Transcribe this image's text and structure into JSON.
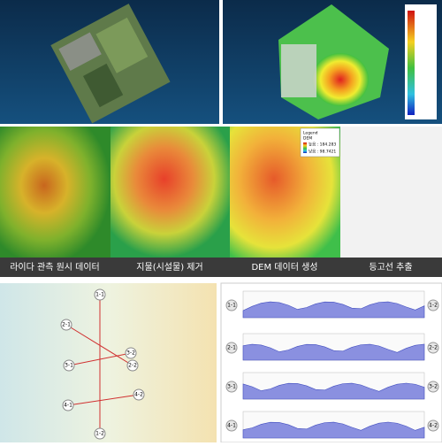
{
  "captions": [
    "라이다 관측 원시 데이터",
    "지물(시설물) 제거",
    "DEM 데이터 생성",
    "등고선 추출"
  ],
  "dem_legend": {
    "title": "Legend",
    "layer": "DEM",
    "high": "높음 : 184.283",
    "low": "낮음 : 98.7421"
  },
  "map_points": [
    "1-1",
    "1-2",
    "2-1",
    "2-2",
    "3-1",
    "3-2",
    "4-1",
    "4-2"
  ],
  "profiles": [
    {
      "start": "1-1",
      "end": "1-2"
    },
    {
      "start": "2-1",
      "end": "2-2"
    },
    {
      "start": "3-1",
      "end": "3-2"
    },
    {
      "start": "4-1",
      "end": "4-2"
    }
  ]
}
